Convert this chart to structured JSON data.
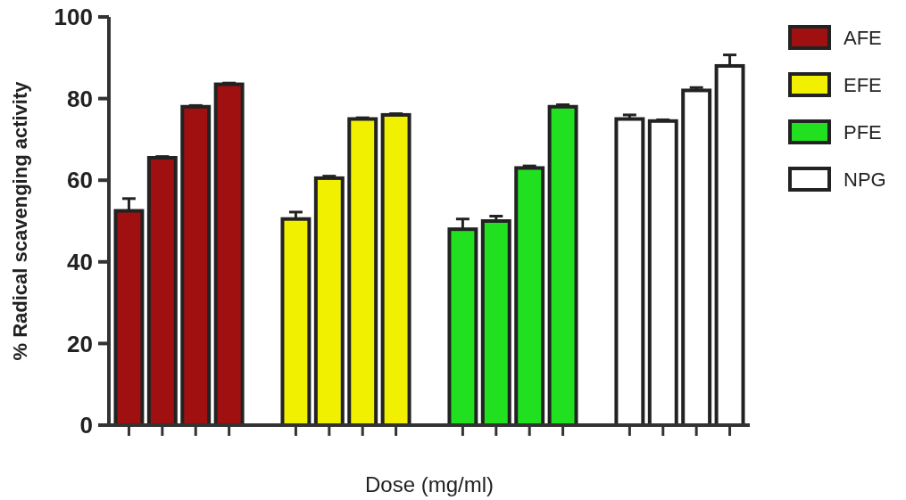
{
  "chart_data": {
    "type": "bar",
    "xlabel": "Dose (mg/ml)",
    "ylabel": "% Radical scavenging activity",
    "categories": [
      null,
      null,
      null,
      null,
      null,
      null,
      null,
      null,
      null,
      null,
      null,
      null,
      null,
      null,
      null,
      null,
      null,
      null,
      null
    ],
    "series": [
      {
        "name": "AFE",
        "color": "#a01010",
        "values": [
          52.5,
          65.5,
          78,
          83.5,
          null,
          null,
          null,
          null,
          null,
          null,
          null,
          null,
          null,
          null,
          null,
          null,
          null,
          null,
          null
        ],
        "errors": [
          3,
          0.3,
          0.3,
          0.3,
          null,
          null,
          null,
          null,
          null,
          null,
          null,
          null,
          null,
          null,
          null,
          null,
          null,
          null,
          null
        ]
      },
      {
        "name": "EFE",
        "color": "#f0f000",
        "values": [
          null,
          null,
          null,
          null,
          null,
          50.5,
          60.5,
          75,
          76,
          null,
          null,
          null,
          null,
          null,
          null,
          null,
          null,
          null,
          null
        ],
        "errors": [
          null,
          null,
          null,
          null,
          null,
          1.7,
          0.5,
          0.3,
          0.3,
          null,
          null,
          null,
          null,
          null,
          null,
          null,
          null,
          null,
          null
        ]
      },
      {
        "name": "PFE",
        "color": "#20e020",
        "values": [
          null,
          null,
          null,
          null,
          null,
          null,
          null,
          null,
          null,
          null,
          48,
          50,
          63,
          78,
          null,
          null,
          null,
          null,
          null
        ],
        "errors": [
          null,
          null,
          null,
          null,
          null,
          null,
          null,
          null,
          null,
          null,
          2.5,
          1.2,
          0.5,
          0.5,
          null,
          null,
          null,
          null,
          null
        ]
      },
      {
        "name": "NPG",
        "color": "#ffffff",
        "values": [
          null,
          null,
          null,
          null,
          null,
          null,
          null,
          null,
          null,
          null,
          null,
          null,
          null,
          null,
          null,
          75,
          74.5,
          82,
          88
        ],
        "errors": [
          null,
          null,
          null,
          null,
          null,
          null,
          null,
          null,
          null,
          null,
          null,
          null,
          null,
          null,
          null,
          1,
          0.3,
          0.7,
          2.7
        ]
      }
    ],
    "ylim": [
      0,
      100
    ],
    "yticks": [
      0,
      20,
      40,
      60,
      80,
      100
    ],
    "grid": false,
    "legend": "top right"
  }
}
